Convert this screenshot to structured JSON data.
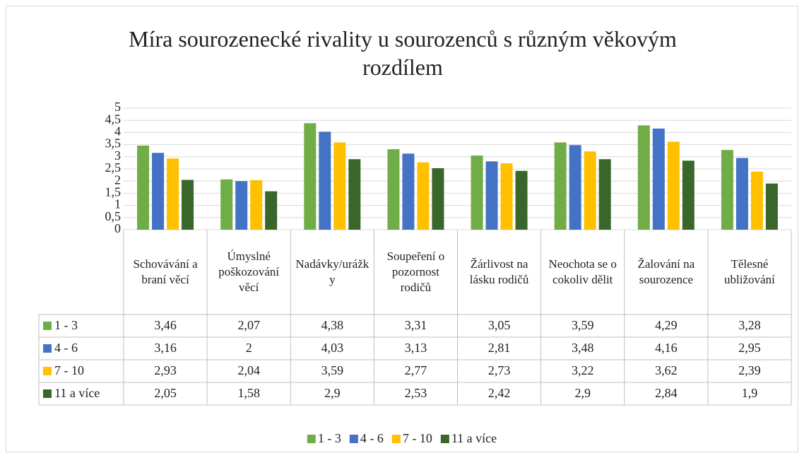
{
  "chart_data": {
    "type": "bar",
    "title": "Míra sourozenecké rivality u sourozenců s různým věkovým rozdílem",
    "categories": [
      "Schovávání a braní věcí",
      "Úmyslné poškozování věcí",
      "Nadávky/urážky",
      "Soupeření o pozornost rodičů",
      "Žárlivost na lásku rodičů",
      "Neochota se o cokoliv dělit",
      "Žalování na sourozence",
      "Tělesné ubližování"
    ],
    "series": [
      {
        "name": "1 - 3",
        "color": "#70ad47",
        "values": [
          3.46,
          2.07,
          4.38,
          3.31,
          3.05,
          3.59,
          4.29,
          3.28
        ],
        "value_labels": [
          "3,46",
          "2,07",
          "4,38",
          "3,31",
          "3,05",
          "3,59",
          "4,29",
          "3,28"
        ]
      },
      {
        "name": "4 - 6",
        "color": "#4472c4",
        "values": [
          3.16,
          2,
          4.03,
          3.13,
          2.81,
          3.48,
          4.16,
          2.95
        ],
        "value_labels": [
          "3,16",
          "2",
          "4,03",
          "3,13",
          "2,81",
          "3,48",
          "4,16",
          "2,95"
        ]
      },
      {
        "name": "7 - 10",
        "color": "#ffc000",
        "values": [
          2.93,
          2.04,
          3.59,
          2.77,
          2.73,
          3.22,
          3.62,
          2.39
        ],
        "value_labels": [
          "2,93",
          "2,04",
          "3,59",
          "2,77",
          "2,73",
          "3,22",
          "3,62",
          "2,39"
        ]
      },
      {
        "name": "11 a více",
        "color": "#38662b",
        "values": [
          2.05,
          1.58,
          2.9,
          2.53,
          2.42,
          2.9,
          2.84,
          1.9
        ],
        "value_labels": [
          "2,05",
          "1,58",
          "2,9",
          "2,53",
          "2,42",
          "2,9",
          "2,84",
          "1,9"
        ]
      }
    ],
    "ylim": [
      0,
      5
    ],
    "yticks": [
      0,
      {
        "value": 0.5,
        "label": "0,5"
      },
      1,
      {
        "value": 1.5,
        "label": "1,5"
      },
      2,
      {
        "value": 2.5,
        "label": "2,5"
      },
      3,
      {
        "value": 3.5,
        "label": "3,5"
      },
      4,
      {
        "value": 4.5,
        "label": "4,5"
      },
      5
    ],
    "grid": true
  }
}
